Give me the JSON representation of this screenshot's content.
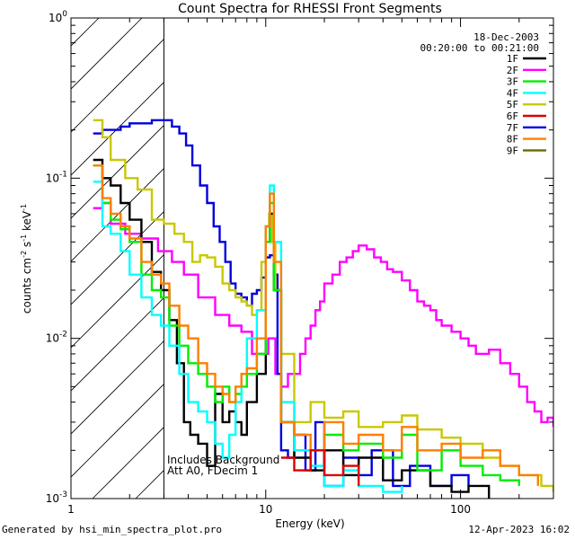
{
  "chart_data": {
    "type": "line",
    "title": "Count Spectra for RHESSI Front Segments",
    "xlabel": "Energy (keV)",
    "ylabel": "counts cm",
    "ylabel_sup1": "-2",
    "ylabel_mid": " s",
    "ylabel_sup2": "-1",
    "ylabel_mid2": " keV",
    "ylabel_sup3": "-1",
    "xscale": "log",
    "yscale": "log",
    "xlim": [
      1,
      300
    ],
    "ylim": [
      0.001,
      1
    ],
    "x_ticks": [
      {
        "value": 1,
        "label": "1"
      },
      {
        "value": 10,
        "label": "10"
      },
      {
        "value": 100,
        "label": "100"
      }
    ],
    "y_ticks": [
      {
        "value": 1,
        "base": "10",
        "exp": "0"
      },
      {
        "value": 0.1,
        "base": "10",
        "exp": "-1"
      },
      {
        "value": 0.01,
        "base": "10",
        "exp": "-2"
      },
      {
        "value": 0.001,
        "base": "10",
        "exp": "-3"
      }
    ],
    "date": "18-Dec-2003",
    "time_range": "00:20:00 to 00:21:00",
    "shaded_region_below_keV": 3,
    "annotations": [
      "Includes Background",
      "Att A0, FDecim 1"
    ],
    "legend": [
      {
        "name": "1F",
        "color": "#000000"
      },
      {
        "name": "2F",
        "color": "#ff00ff"
      },
      {
        "name": "3F",
        "color": "#00ee00"
      },
      {
        "name": "4F",
        "color": "#00ffff"
      },
      {
        "name": "5F",
        "color": "#c8c800"
      },
      {
        "name": "6F",
        "color": "#dd0000"
      },
      {
        "name": "7F",
        "color": "#0000dd"
      },
      {
        "name": "8F",
        "color": "#ff7f00"
      },
      {
        "name": "9F",
        "color": "#6b6b00"
      }
    ],
    "series": [
      {
        "name": "2F",
        "color": "#ff00ff",
        "points": [
          [
            1.3,
            0.065
          ],
          [
            1.45,
            0.07
          ],
          [
            1.6,
            0.052
          ],
          [
            1.9,
            0.045
          ],
          [
            2.3,
            0.042
          ],
          [
            2.8,
            0.035
          ],
          [
            3.3,
            0.03
          ],
          [
            3.8,
            0.025
          ],
          [
            4.5,
            0.018
          ],
          [
            5.5,
            0.014
          ],
          [
            6.5,
            0.012
          ],
          [
            7.5,
            0.011
          ],
          [
            8.5,
            0.008
          ],
          [
            9.5,
            0.008
          ],
          [
            10.3,
            0.01
          ],
          [
            11.2,
            0.006
          ],
          [
            12,
            0.005
          ],
          [
            13,
            0.006
          ],
          [
            14,
            0.006
          ],
          [
            15,
            0.008
          ],
          [
            16,
            0.01
          ],
          [
            17,
            0.012
          ],
          [
            18,
            0.015
          ],
          [
            19,
            0.017
          ],
          [
            20,
            0.022
          ],
          [
            22,
            0.025
          ],
          [
            24,
            0.03
          ],
          [
            26,
            0.032
          ],
          [
            28,
            0.035
          ],
          [
            30,
            0.038
          ],
          [
            33,
            0.036
          ],
          [
            36,
            0.032
          ],
          [
            39,
            0.03
          ],
          [
            42,
            0.027
          ],
          [
            45,
            0.026
          ],
          [
            50,
            0.023
          ],
          [
            55,
            0.02
          ],
          [
            60,
            0.017
          ],
          [
            65,
            0.016
          ],
          [
            70,
            0.015
          ],
          [
            75,
            0.013
          ],
          [
            80,
            0.012
          ],
          [
            90,
            0.011
          ],
          [
            100,
            0.01
          ],
          [
            110,
            0.009
          ],
          [
            120,
            0.008
          ],
          [
            140,
            0.0085
          ],
          [
            160,
            0.007
          ],
          [
            180,
            0.006
          ],
          [
            200,
            0.005
          ],
          [
            220,
            0.004
          ],
          [
            240,
            0.0035
          ],
          [
            260,
            0.003
          ],
          [
            280,
            0.0032
          ],
          [
            300,
            0.0028
          ]
        ]
      },
      {
        "name": "7F",
        "color": "#0000dd",
        "points": [
          [
            1.3,
            0.19
          ],
          [
            1.45,
            0.2
          ],
          [
            1.6,
            0.2
          ],
          [
            1.8,
            0.21
          ],
          [
            2,
            0.22
          ],
          [
            2.3,
            0.22
          ],
          [
            2.6,
            0.23
          ],
          [
            3,
            0.23
          ],
          [
            3.3,
            0.21
          ],
          [
            3.6,
            0.19
          ],
          [
            3.9,
            0.16
          ],
          [
            4.2,
            0.12
          ],
          [
            4.6,
            0.09
          ],
          [
            5,
            0.07
          ],
          [
            5.4,
            0.05
          ],
          [
            5.8,
            0.04
          ],
          [
            6.2,
            0.03
          ],
          [
            6.6,
            0.022
          ],
          [
            7,
            0.019
          ],
          [
            7.5,
            0.018
          ],
          [
            8,
            0.016
          ],
          [
            8.5,
            0.019
          ],
          [
            9,
            0.02
          ],
          [
            9.5,
            0.024
          ],
          [
            10,
            0.032
          ],
          [
            10.5,
            0.033
          ],
          [
            11,
            0.025
          ],
          [
            11.5,
            0.006
          ],
          [
            12,
            0.002
          ],
          [
            13,
            0.0018
          ],
          [
            14,
            0.0025
          ],
          [
            16,
            0.0015
          ],
          [
            18,
            0.003
          ],
          [
            20,
            0.0012
          ],
          [
            25,
            0.0018
          ],
          [
            30,
            0.0014
          ],
          [
            35,
            0.002
          ],
          [
            45,
            0.0012
          ],
          [
            55,
            0.0016
          ],
          [
            70,
            0.0012
          ],
          [
            90,
            0.0014
          ],
          [
            110,
            0.0012
          ]
        ]
      },
      {
        "name": "5F",
        "color": "#c8c800",
        "points": [
          [
            1.3,
            0.23
          ],
          [
            1.45,
            0.18
          ],
          [
            1.6,
            0.13
          ],
          [
            1.9,
            0.1
          ],
          [
            2.2,
            0.085
          ],
          [
            2.6,
            0.055
          ],
          [
            3,
            0.052
          ],
          [
            3.4,
            0.045
          ],
          [
            3.8,
            0.04
          ],
          [
            4.2,
            0.03
          ],
          [
            4.6,
            0.033
          ],
          [
            5,
            0.032
          ],
          [
            5.5,
            0.028
          ],
          [
            6,
            0.022
          ],
          [
            6.5,
            0.02
          ],
          [
            7,
            0.018
          ],
          [
            7.5,
            0.017
          ],
          [
            8,
            0.016
          ],
          [
            8.5,
            0.014
          ],
          [
            9,
            0.015
          ],
          [
            9.5,
            0.03
          ],
          [
            10,
            0.05
          ],
          [
            10.4,
            0.06
          ],
          [
            10.8,
            0.04
          ],
          [
            11.2,
            0.02
          ],
          [
            12,
            0.008
          ],
          [
            14,
            0.003
          ],
          [
            17,
            0.004
          ],
          [
            20,
            0.0032
          ],
          [
            25,
            0.0035
          ],
          [
            30,
            0.0028
          ],
          [
            40,
            0.003
          ],
          [
            50,
            0.0033
          ],
          [
            60,
            0.0027
          ],
          [
            80,
            0.0024
          ],
          [
            100,
            0.0022
          ],
          [
            130,
            0.0018
          ],
          [
            160,
            0.0016
          ],
          [
            200,
            0.0014
          ],
          [
            260,
            0.0012
          ],
          [
            300,
            0.0011
          ]
        ]
      },
      {
        "name": "1F",
        "color": "#000000",
        "points": [
          [
            1.3,
            0.13
          ],
          [
            1.45,
            0.1
          ],
          [
            1.6,
            0.09
          ],
          [
            1.8,
            0.07
          ],
          [
            2,
            0.055
          ],
          [
            2.3,
            0.04
          ],
          [
            2.6,
            0.026
          ],
          [
            2.9,
            0.02
          ],
          [
            3.2,
            0.013
          ],
          [
            3.5,
            0.007
          ],
          [
            3.8,
            0.003
          ],
          [
            4.1,
            0.0025
          ],
          [
            4.5,
            0.0022
          ],
          [
            5,
            0.0016
          ],
          [
            5.5,
            0.0045
          ],
          [
            6,
            0.003
          ],
          [
            6.5,
            0.0035
          ],
          [
            7,
            0.003
          ],
          [
            7.5,
            0.0025
          ],
          [
            8,
            0.004
          ],
          [
            9,
            0.006
          ],
          [
            10,
            0.04
          ],
          [
            10.5,
            0.06
          ],
          [
            11,
            0.02
          ],
          [
            12,
            0.003
          ],
          [
            14,
            0.0018
          ],
          [
            17,
            0.0015
          ],
          [
            20,
            0.002
          ],
          [
            25,
            0.0014
          ],
          [
            30,
            0.0018
          ],
          [
            40,
            0.0013
          ],
          [
            50,
            0.0015
          ],
          [
            70,
            0.0012
          ],
          [
            90,
            0.0011
          ],
          [
            110,
            0.0012
          ],
          [
            140,
            0.001
          ]
        ]
      },
      {
        "name": "3F",
        "color": "#00ee00",
        "points": [
          [
            1.3,
            0.12
          ],
          [
            1.45,
            0.07
          ],
          [
            1.6,
            0.055
          ],
          [
            1.8,
            0.048
          ],
          [
            2,
            0.04
          ],
          [
            2.3,
            0.025
          ],
          [
            2.6,
            0.02
          ],
          [
            2.9,
            0.018
          ],
          [
            3.2,
            0.012
          ],
          [
            3.6,
            0.009
          ],
          [
            4,
            0.007
          ],
          [
            4.5,
            0.006
          ],
          [
            5,
            0.005
          ],
          [
            5.5,
            0.004
          ],
          [
            6,
            0.005
          ],
          [
            6.5,
            0.004
          ],
          [
            7,
            0.0045
          ],
          [
            7.5,
            0.005
          ],
          [
            8,
            0.006
          ],
          [
            9,
            0.008
          ],
          [
            10,
            0.04
          ],
          [
            10.5,
            0.07
          ],
          [
            11,
            0.02
          ],
          [
            12,
            0.003
          ],
          [
            14,
            0.002
          ],
          [
            17,
            0.002
          ],
          [
            20,
            0.0025
          ],
          [
            25,
            0.002
          ],
          [
            30,
            0.0022
          ],
          [
            40,
            0.0018
          ],
          [
            50,
            0.0025
          ],
          [
            60,
            0.0015
          ],
          [
            80,
            0.002
          ],
          [
            100,
            0.0016
          ],
          [
            130,
            0.0014
          ],
          [
            160,
            0.0013
          ],
          [
            200,
            0.0012
          ]
        ]
      },
      {
        "name": "4F",
        "color": "#00ffff",
        "points": [
          [
            1.3,
            0.095
          ],
          [
            1.45,
            0.05
          ],
          [
            1.6,
            0.045
          ],
          [
            1.8,
            0.035
          ],
          [
            2,
            0.025
          ],
          [
            2.3,
            0.018
          ],
          [
            2.6,
            0.014
          ],
          [
            2.9,
            0.012
          ],
          [
            3.2,
            0.009
          ],
          [
            3.6,
            0.006
          ],
          [
            4,
            0.004
          ],
          [
            4.5,
            0.0035
          ],
          [
            5,
            0.003
          ],
          [
            5.5,
            0.0022
          ],
          [
            6,
            0.0018
          ],
          [
            6.5,
            0.0025
          ],
          [
            7,
            0.004
          ],
          [
            7.5,
            0.006
          ],
          [
            8,
            0.01
          ],
          [
            9,
            0.015
          ],
          [
            10,
            0.05
          ],
          [
            10.5,
            0.09
          ],
          [
            11,
            0.04
          ],
          [
            12,
            0.004
          ],
          [
            14,
            0.002
          ],
          [
            17,
            0.0016
          ],
          [
            20,
            0.0012
          ],
          [
            25,
            0.0015
          ],
          [
            30,
            0.0012
          ],
          [
            40,
            0.0011
          ],
          [
            50,
            0.0012
          ]
        ]
      },
      {
        "name": "8F",
        "color": "#ff7f00",
        "points": [
          [
            1.3,
            0.12
          ],
          [
            1.45,
            0.075
          ],
          [
            1.6,
            0.06
          ],
          [
            1.8,
            0.05
          ],
          [
            2,
            0.042
          ],
          [
            2.3,
            0.03
          ],
          [
            2.6,
            0.025
          ],
          [
            2.9,
            0.022
          ],
          [
            3.2,
            0.016
          ],
          [
            3.6,
            0.012
          ],
          [
            4,
            0.01
          ],
          [
            4.5,
            0.007
          ],
          [
            5,
            0.006
          ],
          [
            5.5,
            0.005
          ],
          [
            6,
            0.0045
          ],
          [
            6.5,
            0.004
          ],
          [
            7,
            0.005
          ],
          [
            7.5,
            0.006
          ],
          [
            8,
            0.0065
          ],
          [
            9,
            0.01
          ],
          [
            10,
            0.05
          ],
          [
            10.5,
            0.08
          ],
          [
            11,
            0.03
          ],
          [
            12,
            0.003
          ],
          [
            14,
            0.0025
          ],
          [
            17,
            0.002
          ],
          [
            20,
            0.003
          ],
          [
            25,
            0.0022
          ],
          [
            30,
            0.0025
          ],
          [
            40,
            0.002
          ],
          [
            50,
            0.0028
          ],
          [
            60,
            0.002
          ],
          [
            80,
            0.0022
          ],
          [
            100,
            0.0018
          ],
          [
            130,
            0.002
          ],
          [
            160,
            0.0016
          ],
          [
            200,
            0.0014
          ],
          [
            250,
            0.0012
          ]
        ]
      },
      {
        "name": "6F",
        "color": "#dd0000",
        "points": [
          [
            12,
            0.0018
          ],
          [
            14,
            0.0015
          ],
          [
            17,
            0.002
          ],
          [
            20,
            0.0014
          ],
          [
            25,
            0.0016
          ],
          [
            30,
            0.0012
          ]
        ]
      }
    ]
  }
}
